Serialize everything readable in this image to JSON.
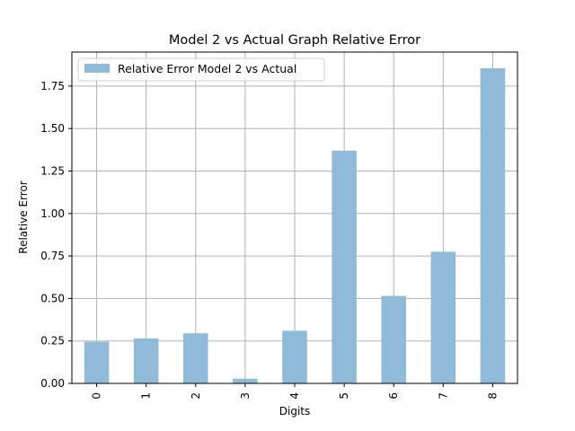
{
  "chart_data": {
    "type": "bar",
    "title": "Model 2 vs Actual Graph Relative Error",
    "xlabel": "Digits",
    "ylabel": "Relative Error",
    "categories": [
      "0",
      "1",
      "2",
      "3",
      "4",
      "5",
      "6",
      "7",
      "8"
    ],
    "series": [
      {
        "name": "Relative Error Model 2 vs Actual",
        "values": [
          0.245,
          0.265,
          0.295,
          0.028,
          0.31,
          1.37,
          0.515,
          0.775,
          1.855
        ],
        "color": "#8fbad8"
      }
    ],
    "ylim": [
      0,
      1.95
    ],
    "yticks": [
      "0.00",
      "0.25",
      "0.50",
      "0.75",
      "1.00",
      "1.25",
      "1.50",
      "1.75"
    ],
    "grid": true,
    "legend_position": "top-left",
    "xtick_rotation": 90
  }
}
